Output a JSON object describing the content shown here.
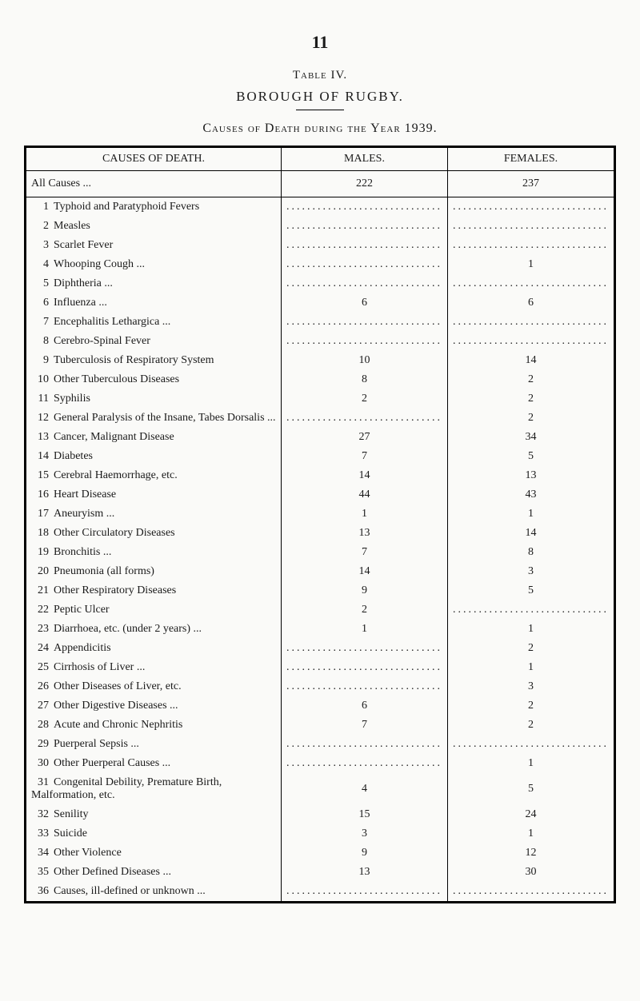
{
  "page_number": "11",
  "table_label": "Table IV.",
  "subtitle": "BOROUGH OF RUGBY.",
  "caption": "Causes of Death during the Year 1939.",
  "columns": {
    "causes": "CAUSES OF DEATH.",
    "males": "MALES.",
    "females": "FEMALES."
  },
  "all_causes_row": {
    "label": "All Causes ...",
    "males": "222",
    "females": "237"
  },
  "rows": [
    {
      "num": "1",
      "label": "Typhoid and Paratyphoid Fevers",
      "males": "",
      "females": "",
      "dots_m": true,
      "dots_f": true
    },
    {
      "num": "2",
      "label": "Measles",
      "males": "",
      "females": "",
      "dots_m": true,
      "dots_f": true
    },
    {
      "num": "3",
      "label": "Scarlet Fever",
      "males": "",
      "females": "",
      "dots_m": true,
      "dots_f": true
    },
    {
      "num": "4",
      "label": "Whooping Cough ...",
      "males": "",
      "females": "1",
      "dots_m": true,
      "dots_f": false
    },
    {
      "num": "5",
      "label": "Diphtheria ...",
      "males": "",
      "females": "",
      "dots_m": true,
      "dots_f": true
    },
    {
      "num": "6",
      "label": "Influenza ...",
      "males": "6",
      "females": "6",
      "dots_m": false,
      "dots_f": false
    },
    {
      "num": "7",
      "label": "Encephalitis Lethargica ...",
      "males": "",
      "females": "",
      "dots_m": true,
      "dots_f": true
    },
    {
      "num": "8",
      "label": "Cerebro-Spinal Fever",
      "males": "",
      "females": "",
      "dots_m": true,
      "dots_f": true
    },
    {
      "num": "9",
      "label": "Tuberculosis of Respiratory System",
      "males": "10",
      "females": "14",
      "dots_m": false,
      "dots_f": false
    },
    {
      "num": "10",
      "label": "Other Tuberculous Diseases",
      "males": "8",
      "females": "2",
      "dots_m": false,
      "dots_f": false
    },
    {
      "num": "11",
      "label": "Syphilis",
      "males": "2",
      "females": "2",
      "dots_m": false,
      "dots_f": false
    },
    {
      "num": "12",
      "label": "General Paralysis of the Insane, Tabes Dorsalis ...",
      "males": "",
      "females": "2",
      "dots_m": true,
      "dots_f": false,
      "multiline": true
    },
    {
      "num": "13",
      "label": "Cancer, Malignant Disease",
      "males": "27",
      "females": "34",
      "dots_m": false,
      "dots_f": false
    },
    {
      "num": "14",
      "label": "Diabetes",
      "males": "7",
      "females": "5",
      "dots_m": false,
      "dots_f": false
    },
    {
      "num": "15",
      "label": "Cerebral Haemorrhage, etc.",
      "males": "14",
      "females": "13",
      "dots_m": false,
      "dots_f": false
    },
    {
      "num": "16",
      "label": "Heart Disease",
      "males": "44",
      "females": "43",
      "dots_m": false,
      "dots_f": false
    },
    {
      "num": "17",
      "label": "Aneuryism ...",
      "males": "1",
      "females": "1",
      "dots_m": false,
      "dots_f": false
    },
    {
      "num": "18",
      "label": "Other Circulatory Diseases",
      "males": "13",
      "females": "14",
      "dots_m": false,
      "dots_f": false
    },
    {
      "num": "19",
      "label": "Bronchitis ...",
      "males": "7",
      "females": "8",
      "dots_m": false,
      "dots_f": false
    },
    {
      "num": "20",
      "label": "Pneumonia (all forms)",
      "males": "14",
      "females": "3",
      "dots_m": false,
      "dots_f": false
    },
    {
      "num": "21",
      "label": "Other Respiratory Diseases",
      "males": "9",
      "females": "5",
      "dots_m": false,
      "dots_f": false
    },
    {
      "num": "22",
      "label": "Peptic Ulcer",
      "males": "2",
      "females": "",
      "dots_m": false,
      "dots_f": true
    },
    {
      "num": "23",
      "label": "Diarrhoea, etc. (under 2 years) ...",
      "males": "1",
      "females": "1",
      "dots_m": false,
      "dots_f": false
    },
    {
      "num": "24",
      "label": "Appendicitis",
      "males": "",
      "females": "2",
      "dots_m": true,
      "dots_f": false
    },
    {
      "num": "25",
      "label": "Cirrhosis of Liver ...",
      "males": "",
      "females": "1",
      "dots_m": true,
      "dots_f": false
    },
    {
      "num": "26",
      "label": "Other Diseases of Liver, etc.",
      "males": "",
      "females": "3",
      "dots_m": true,
      "dots_f": false
    },
    {
      "num": "27",
      "label": "Other Digestive Diseases ...",
      "males": "6",
      "females": "2",
      "dots_m": false,
      "dots_f": false
    },
    {
      "num": "28",
      "label": "Acute and Chronic Nephritis",
      "males": "7",
      "females": "2",
      "dots_m": false,
      "dots_f": false
    },
    {
      "num": "29",
      "label": "Puerperal Sepsis ...",
      "males": "",
      "females": "",
      "dots_m": true,
      "dots_f": true
    },
    {
      "num": "30",
      "label": "Other Puerperal Causes ...",
      "males": "",
      "females": "1",
      "dots_m": true,
      "dots_f": false
    },
    {
      "num": "31",
      "label": "Congenital Debility, Premature Birth, Malformation, etc.",
      "males": "4",
      "females": "5",
      "dots_m": false,
      "dots_f": false,
      "multiline": true
    },
    {
      "num": "32",
      "label": "Senility",
      "males": "15",
      "females": "24",
      "dots_m": false,
      "dots_f": false
    },
    {
      "num": "33",
      "label": "Suicide",
      "males": "3",
      "females": "1",
      "dots_m": false,
      "dots_f": false
    },
    {
      "num": "34",
      "label": "Other Violence",
      "males": "9",
      "females": "12",
      "dots_m": false,
      "dots_f": false
    },
    {
      "num": "35",
      "label": "Other Defined Diseases ...",
      "males": "13",
      "females": "30",
      "dots_m": false,
      "dots_f": false
    },
    {
      "num": "36",
      "label": "Causes, ill-defined or unknown ...",
      "males": "",
      "females": "",
      "dots_m": true,
      "dots_f": true
    }
  ]
}
